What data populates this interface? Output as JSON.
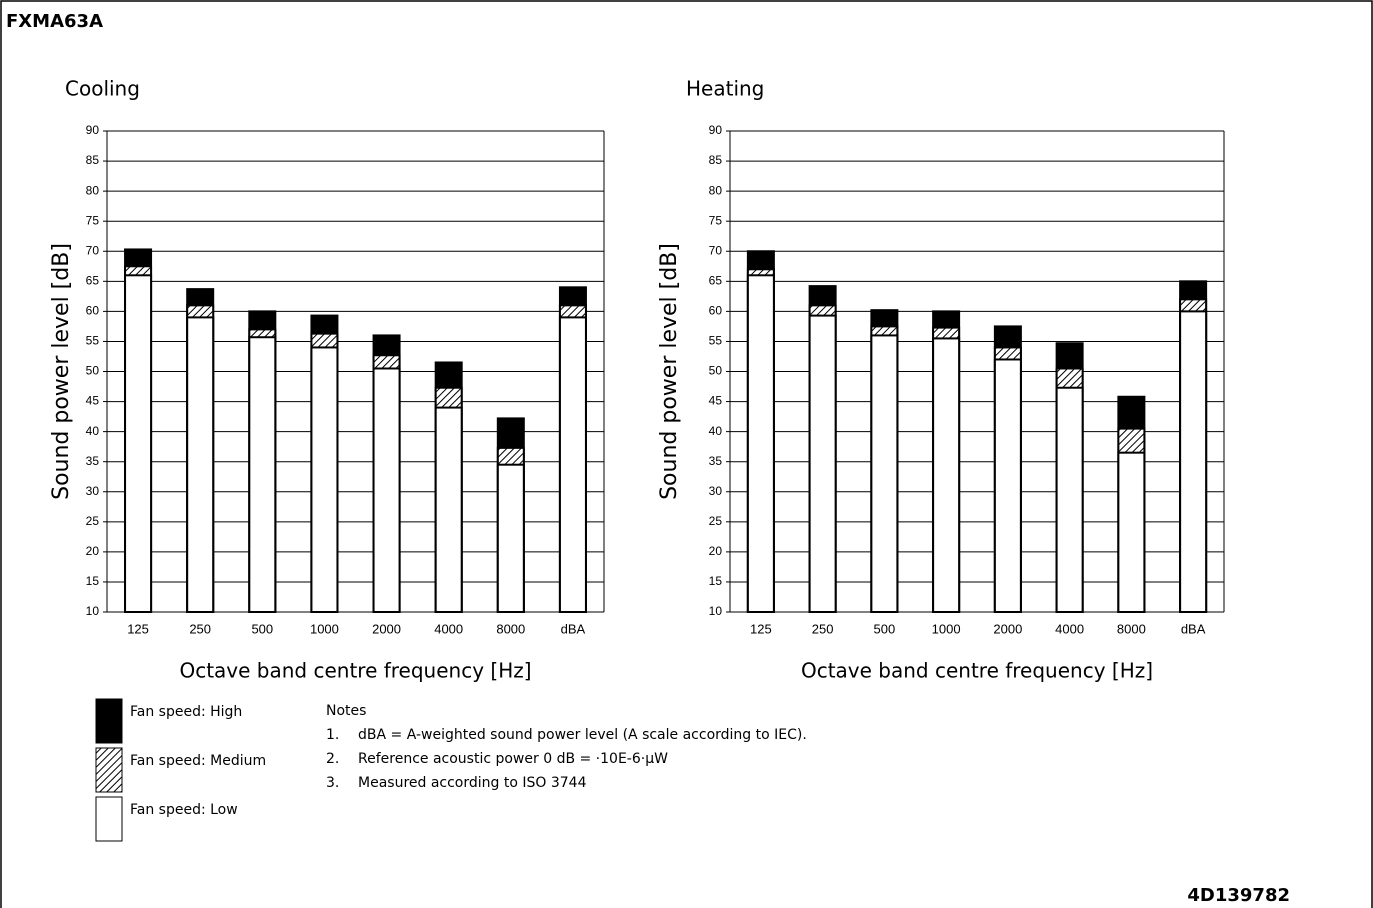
{
  "header": "FXMA63A",
  "doc_code": "4D139782",
  "chart_data": [
    {
      "type": "bar",
      "title": "Cooling",
      "y_label": "Sound power level [dB]",
      "x_label": "Octave band centre frequency [Hz]",
      "categories": [
        "125",
        "250",
        "500",
        "1000",
        "2000",
        "4000",
        "8000",
        "dBA"
      ],
      "series": [
        {
          "name": "Fan speed: High",
          "color": "#000000",
          "values": [
            70.3,
            63.7,
            60,
            59.3,
            56,
            51.5,
            42.2,
            64
          ]
        },
        {
          "name": "Fan speed: Medium",
          "color": "#000000",
          "pattern": "hatch",
          "values": [
            67.5,
            61,
            57,
            56.3,
            52.7,
            47.3,
            37.3,
            61
          ]
        },
        {
          "name": "Fan speed: Low",
          "color": "#ffffff",
          "values": [
            66,
            59,
            55.7,
            54,
            50.5,
            44,
            34.5,
            59
          ]
        }
      ],
      "ylim": [
        10,
        90
      ],
      "yticks": [
        10,
        15,
        20,
        25,
        30,
        35,
        40,
        45,
        50,
        55,
        60,
        65,
        70,
        75,
        80,
        85,
        90
      ],
      "grid": true
    },
    {
      "type": "bar",
      "title": "Heating",
      "y_label": "Sound power level [dB]",
      "x_label": "Octave band centre frequency [Hz]",
      "categories": [
        "125",
        "250",
        "500",
        "1000",
        "2000",
        "4000",
        "8000",
        "dBA"
      ],
      "series": [
        {
          "color": "#000000",
          "values": [
            70,
            64.2,
            60.2,
            60,
            57.5,
            54.7,
            45.8,
            65
          ]
        },
        {
          "color": "#000000",
          "pattern": "hatch",
          "values": [
            67,
            61,
            57.5,
            57.3,
            54,
            50.5,
            40.5,
            62
          ]
        },
        {
          "color": "#ffffff",
          "values": [
            66,
            59.3,
            56,
            55.5,
            52,
            47.3,
            36.5,
            60
          ]
        }
      ],
      "ylim": [
        10,
        90
      ],
      "yticks": [
        10,
        15,
        20,
        25,
        30,
        35,
        40,
        45,
        50,
        55,
        60,
        65,
        70,
        75,
        80,
        85,
        90
      ],
      "grid": true
    }
  ],
  "notes": {
    "title": "Notes",
    "items": [
      {
        "number": "1.",
        "text": "dBA = A-weighted sound power level (A scale according to IEC)."
      },
      {
        "number": "2.",
        "text": "Reference acoustic power 0 dB = ·10E-6·µW"
      },
      {
        "number": "3.",
        "text": "Measured according to ISO 3744"
      }
    ]
  }
}
